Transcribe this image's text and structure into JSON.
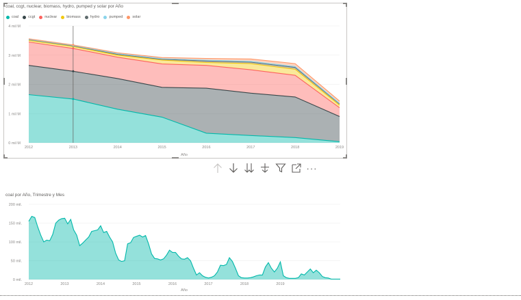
{
  "chart1": {
    "title": "coal,  ccgt,  nuclear,  biomass,  hydro,  pumped y  solar por Año",
    "xlabel": "Año",
    "ytick_labels": [
      "0 mil M",
      "1 mil M",
      "2 mil M",
      "3 mil M",
      "4 mil M"
    ]
  },
  "chart2": {
    "title": "coal por Año, Trimestre y Mes",
    "xlabel": "Año",
    "ytick_labels": [
      "0 mil.",
      "50 mil.",
      "100 mil.",
      "150 mil.",
      "200 mil."
    ]
  },
  "toolbar": {
    "icons": [
      "drill-up-icon",
      "drill-down-icon",
      "go-to-next-level-icon",
      "expand-all-down-icon",
      "filter-icon",
      "focus-mode-icon",
      "more-options-icon"
    ],
    "more_label": "···"
  },
  "chart_data": [
    {
      "type": "area",
      "stacked": true,
      "title": "coal,  ccgt,  nuclear,  biomass,  hydro,  pumped y  solar por Año",
      "xlabel": "Año",
      "ylabel": "",
      "x": [
        "2012",
        "2013",
        "2014",
        "2015",
        "2016",
        "2017",
        "2018",
        "2019"
      ],
      "ylim": [
        0,
        4000000000
      ],
      "yticks": [
        0,
        1000000000,
        2000000000,
        3000000000,
        4000000000
      ],
      "legend_position": "top-left",
      "grid": true,
      "series": [
        {
          "name": "coal",
          "color": "#01b8aa",
          "values": [
            1650000000,
            1500000000,
            1150000000,
            880000000,
            330000000,
            250000000,
            180000000,
            40000000
          ]
        },
        {
          "name": "ccgt",
          "color": "#374649",
          "values": [
            1000000000,
            950000000,
            1050000000,
            1020000000,
            1540000000,
            1450000000,
            1390000000,
            860000000
          ]
        },
        {
          "name": "nuclear",
          "color": "#fd625e",
          "values": [
            800000000,
            780000000,
            730000000,
            800000000,
            780000000,
            800000000,
            740000000,
            300000000
          ]
        },
        {
          "name": "biomass",
          "color": "#f2c80f",
          "values": [
            60000000,
            70000000,
            70000000,
            130000000,
            100000000,
            210000000,
            210000000,
            90000000
          ]
        },
        {
          "name": "hydro",
          "color": "#5f6b6d",
          "values": [
            20000000,
            20000000,
            30000000,
            30000000,
            50000000,
            50000000,
            60000000,
            40000000
          ]
        },
        {
          "name": "pumped",
          "color": "#8ad4eb",
          "values": [
            10000000,
            10000000,
            20000000,
            20000000,
            30000000,
            30000000,
            30000000,
            20000000
          ]
        },
        {
          "name": "solar",
          "color": "#fe9666",
          "values": [
            20000000,
            20000000,
            30000000,
            40000000,
            60000000,
            80000000,
            100000000,
            80000000
          ]
        }
      ]
    },
    {
      "type": "area",
      "title": "coal por Año, Trimestre y Mes",
      "xlabel": "Año",
      "ylabel": "",
      "x_tick_labels": [
        "2012",
        "2013",
        "2014",
        "2015",
        "2016",
        "2017",
        "2018",
        "2019"
      ],
      "x_start": "2012-01",
      "x_step": "month",
      "ylim": [
        0,
        200000
      ],
      "yticks": [
        0,
        50000,
        100000,
        150000,
        200000
      ],
      "grid": true,
      "series": [
        {
          "name": "coal",
          "color": "#01b8aa",
          "values": [
            155000,
            168000,
            165000,
            140000,
            118000,
            100000,
            105000,
            103000,
            120000,
            150000,
            158000,
            162000,
            163000,
            148000,
            160000,
            132000,
            118000,
            90000,
            97000,
            105000,
            113000,
            128000,
            130000,
            132000,
            143000,
            125000,
            128000,
            113000,
            100000,
            70000,
            52000,
            48000,
            50000,
            95000,
            98000,
            112000,
            115000,
            118000,
            113000,
            117000,
            95000,
            68000,
            56000,
            55000,
            52000,
            55000,
            65000,
            78000,
            72000,
            72000,
            62000,
            55000,
            54000,
            58000,
            50000,
            30000,
            12000,
            18000,
            10000,
            6000,
            4000,
            6000,
            10000,
            20000,
            38000,
            37000,
            40000,
            58000,
            48000,
            30000,
            10000,
            5000,
            4000,
            4000,
            5000,
            7000,
            10000,
            12000,
            12000,
            33000,
            45000,
            30000,
            20000,
            30000,
            47000,
            10000,
            5000,
            3000,
            3000,
            3000,
            5000,
            15000,
            12000,
            20000,
            28000,
            18000,
            25000,
            18000,
            8000,
            5000,
            4000,
            1000,
            1000,
            1000,
            1000
          ]
        }
      ]
    }
  ]
}
